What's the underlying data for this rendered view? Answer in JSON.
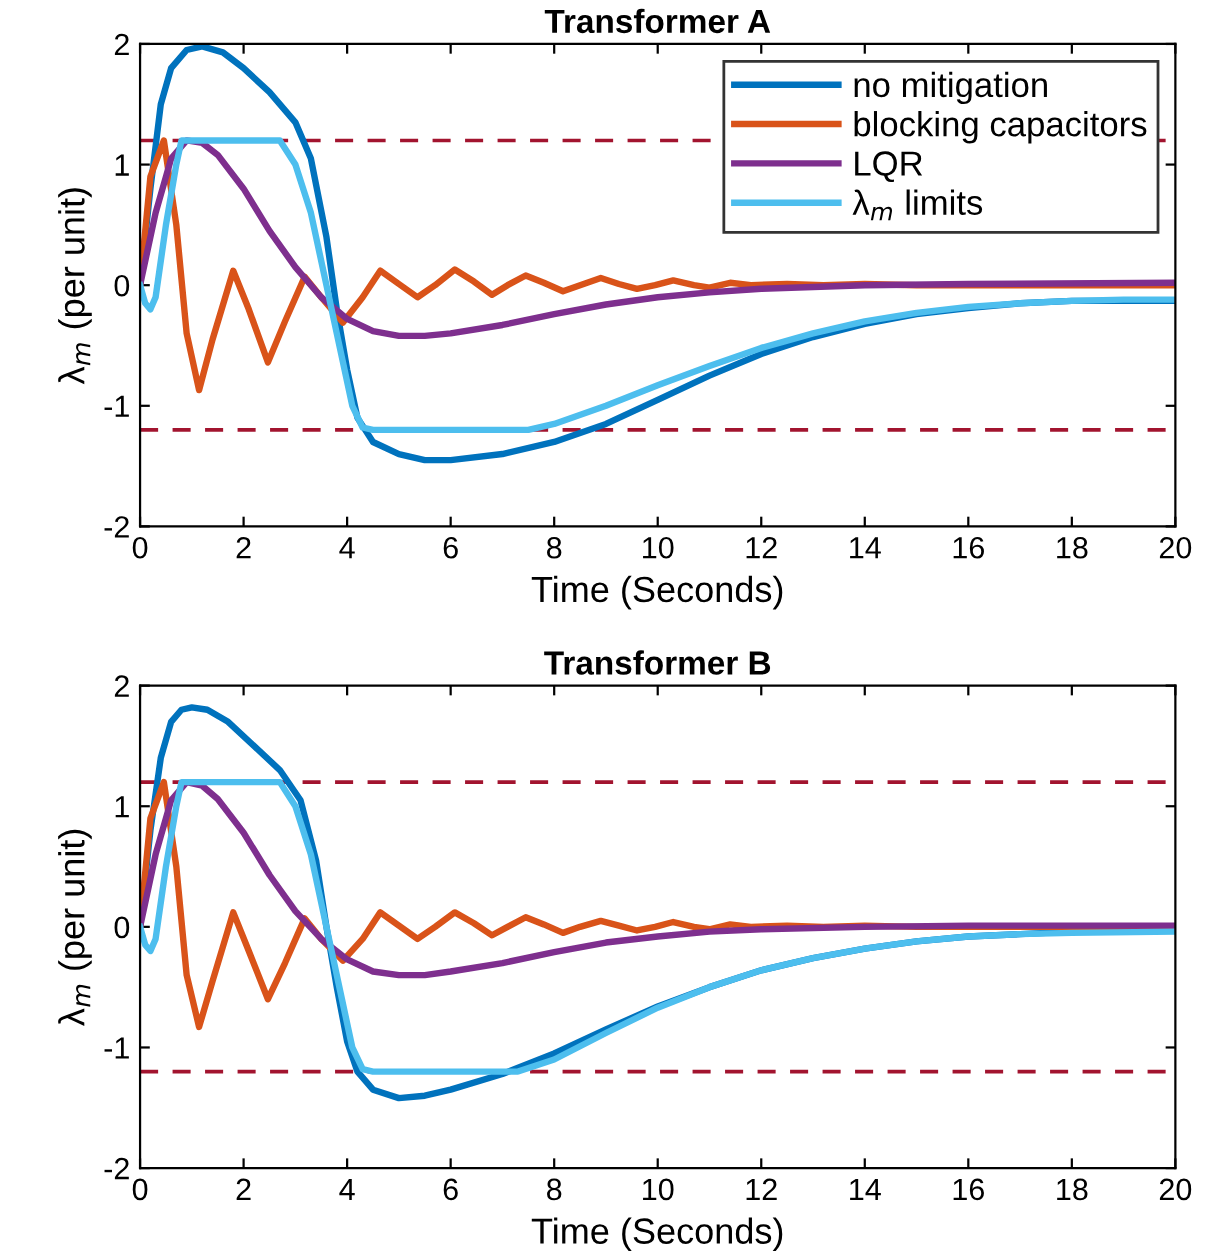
{
  "chart_data": [
    {
      "type": "line",
      "title": "Transformer A",
      "xlabel": "Time (Seconds)",
      "ylabel": "λ$_{m}$ (per unit)",
      "xlim": [
        0,
        20
      ],
      "ylim": [
        -2,
        2
      ],
      "xticks": [
        0,
        2,
        4,
        6,
        8,
        10,
        12,
        14,
        16,
        18,
        20
      ],
      "yticks": [
        -2,
        -1,
        0,
        1,
        2
      ],
      "grid": false,
      "legend": "top right",
      "line_style": "solid",
      "marker": "none",
      "series": [
        {
          "name": "no mitigation",
          "color": "#0072bd",
          "x": [
            0,
            0.2,
            0.4,
            0.6,
            0.9,
            1.2,
            1.6,
            2,
            2.5,
            3,
            3.3,
            3.6,
            3.8,
            4,
            4.2,
            4.5,
            5,
            5.5,
            6,
            7,
            8,
            9,
            10,
            11,
            12,
            13,
            14,
            15,
            16,
            17,
            18,
            19,
            20
          ],
          "values": [
            0,
            0.8,
            1.5,
            1.8,
            1.95,
            1.98,
            1.93,
            1.8,
            1.6,
            1.35,
            1.05,
            0.4,
            -0.2,
            -0.7,
            -1.1,
            -1.3,
            -1.4,
            -1.45,
            -1.45,
            -1.4,
            -1.3,
            -1.15,
            -0.95,
            -0.75,
            -0.57,
            -0.43,
            -0.32,
            -0.24,
            -0.19,
            -0.15,
            -0.13,
            -0.13,
            -0.13
          ]
        },
        {
          "name": "blocking capacitors",
          "color": "#d95319",
          "x": [
            0,
            0.2,
            0.46,
            0.7,
            0.9,
            1.14,
            1.4,
            1.8,
            2.1,
            2.47,
            2.8,
            3.18,
            3.5,
            3.92,
            4.3,
            4.64,
            5.0,
            5.36,
            5.7,
            6.08,
            6.45,
            6.8,
            7.1,
            7.45,
            7.8,
            8.17,
            8.5,
            8.9,
            9.25,
            9.6,
            9.95,
            10.3,
            10.7,
            11.0,
            11.4,
            11.8,
            12.5,
            13.2,
            14,
            15,
            20
          ],
          "values": [
            0,
            0.9,
            1.2,
            0.5,
            -0.4,
            -0.87,
            -0.45,
            0.12,
            -0.2,
            -0.64,
            -0.3,
            0.07,
            -0.1,
            -0.31,
            -0.1,
            0.12,
            0.01,
            -0.1,
            0.0,
            0.13,
            0.03,
            -0.08,
            0.0,
            0.08,
            0.02,
            -0.05,
            0.0,
            0.06,
            0.01,
            -0.03,
            0.0,
            0.04,
            0.0,
            -0.02,
            0.02,
            0.0,
            0.01,
            0.0,
            0.01,
            0.0,
            0.0
          ]
        },
        {
          "name": "LQR",
          "color": "#7e2f8e",
          "x": [
            0,
            0.3,
            0.6,
            0.9,
            1.2,
            1.5,
            2,
            2.5,
            3,
            3.5,
            4,
            4.5,
            5,
            5.5,
            6,
            7,
            8,
            9,
            10,
            11,
            12,
            14,
            16,
            20
          ],
          "values": [
            0,
            0.6,
            1.05,
            1.2,
            1.18,
            1.08,
            0.8,
            0.45,
            0.15,
            -0.1,
            -0.28,
            -0.38,
            -0.42,
            -0.42,
            -0.4,
            -0.33,
            -0.24,
            -0.16,
            -0.1,
            -0.06,
            -0.03,
            0.0,
            0.01,
            0.02
          ]
        },
        {
          "name": "λ$_{m}$ limits",
          "color": "#4dbeee",
          "x": [
            0,
            0.1,
            0.2,
            0.3,
            0.5,
            0.7,
            0.8,
            2.7,
            3.0,
            3.3,
            3.6,
            3.9,
            4.1,
            4.3,
            4.5,
            7.5,
            8,
            9,
            10,
            11,
            12,
            13,
            14,
            15,
            16,
            17,
            18,
            19,
            20
          ],
          "values": [
            0,
            -0.15,
            -0.2,
            -0.1,
            0.5,
            1.0,
            1.2,
            1.2,
            1.0,
            0.6,
            0.0,
            -0.6,
            -1.0,
            -1.18,
            -1.2,
            -1.2,
            -1.15,
            -1.0,
            -0.83,
            -0.67,
            -0.52,
            -0.4,
            -0.3,
            -0.23,
            -0.18,
            -0.15,
            -0.13,
            -0.12,
            -0.12
          ]
        }
      ],
      "ref_lines": [
        {
          "axis": "y",
          "value": 1.2,
          "color": "#a2142f",
          "line_style": "dashed"
        },
        {
          "axis": "y",
          "value": -1.2,
          "color": "#a2142f",
          "line_style": "dashed"
        }
      ]
    },
    {
      "type": "line",
      "title": "Transformer B",
      "xlabel": "Time (Seconds)",
      "ylabel": "λ$_{m}$ (per unit)",
      "xlim": [
        0,
        20
      ],
      "ylim": [
        -2,
        2
      ],
      "xticks": [
        0,
        2,
        4,
        6,
        8,
        10,
        12,
        14,
        16,
        18,
        20
      ],
      "yticks": [
        -2,
        -1,
        0,
        1,
        2
      ],
      "grid": false,
      "line_style": "solid",
      "marker": "none",
      "series": [
        {
          "color": "#0072bd",
          "x": [
            0,
            0.2,
            0.4,
            0.6,
            0.8,
            1.0,
            1.3,
            1.7,
            2.2,
            2.7,
            3.1,
            3.4,
            3.6,
            3.8,
            4.0,
            4.2,
            4.5,
            5,
            5.5,
            6,
            7,
            8,
            9,
            10,
            11,
            12,
            13,
            14,
            15,
            16,
            17,
            18,
            20
          ],
          "values": [
            0,
            0.8,
            1.4,
            1.7,
            1.8,
            1.82,
            1.8,
            1.7,
            1.5,
            1.3,
            1.05,
            0.55,
            0.0,
            -0.5,
            -0.95,
            -1.2,
            -1.35,
            -1.42,
            -1.4,
            -1.35,
            -1.22,
            -1.05,
            -0.85,
            -0.66,
            -0.5,
            -0.36,
            -0.26,
            -0.18,
            -0.12,
            -0.08,
            -0.06,
            -0.04,
            -0.03
          ]
        },
        {
          "color": "#d95319",
          "x": [
            0,
            0.2,
            0.46,
            0.7,
            0.9,
            1.14,
            1.4,
            1.8,
            2.1,
            2.47,
            2.8,
            3.18,
            3.5,
            3.92,
            4.3,
            4.64,
            5.0,
            5.36,
            5.7,
            6.08,
            6.45,
            6.8,
            7.1,
            7.45,
            7.8,
            8.17,
            8.5,
            8.9,
            9.25,
            9.6,
            9.95,
            10.3,
            10.7,
            11.0,
            11.4,
            11.8,
            12.5,
            13.2,
            14,
            15,
            20
          ],
          "values": [
            0,
            0.9,
            1.2,
            0.5,
            -0.4,
            -0.83,
            -0.45,
            0.12,
            -0.2,
            -0.6,
            -0.3,
            0.07,
            -0.1,
            -0.28,
            -0.1,
            0.12,
            0.01,
            -0.1,
            0.0,
            0.12,
            0.03,
            -0.07,
            0.0,
            0.08,
            0.02,
            -0.05,
            0.0,
            0.05,
            0.01,
            -0.03,
            0.0,
            0.04,
            0.0,
            -0.02,
            0.02,
            0.0,
            0.01,
            0.0,
            0.01,
            0.0,
            0.0
          ]
        },
        {
          "color": "#7e2f8e",
          "x": [
            0,
            0.3,
            0.6,
            0.9,
            1.2,
            1.5,
            2,
            2.5,
            3,
            3.5,
            4,
            4.5,
            5,
            5.5,
            6,
            7,
            8,
            9,
            10,
            11,
            12,
            14,
            16,
            20
          ],
          "values": [
            0,
            0.6,
            1.05,
            1.2,
            1.17,
            1.06,
            0.78,
            0.43,
            0.13,
            -0.1,
            -0.27,
            -0.37,
            -0.4,
            -0.4,
            -0.37,
            -0.3,
            -0.21,
            -0.13,
            -0.08,
            -0.04,
            -0.02,
            0.0,
            0.01,
            0.01
          ]
        },
        {
          "color": "#4dbeee",
          "x": [
            0,
            0.1,
            0.2,
            0.3,
            0.5,
            0.7,
            0.8,
            2.7,
            3.0,
            3.3,
            3.6,
            3.9,
            4.1,
            4.3,
            4.5,
            7.3,
            8,
            9,
            10,
            11,
            12,
            13,
            14,
            15,
            16,
            17,
            18,
            20
          ],
          "values": [
            0,
            -0.15,
            -0.2,
            -0.1,
            0.5,
            1.0,
            1.2,
            1.2,
            1.0,
            0.6,
            0.0,
            -0.6,
            -1.0,
            -1.18,
            -1.2,
            -1.2,
            -1.1,
            -0.88,
            -0.67,
            -0.5,
            -0.36,
            -0.26,
            -0.18,
            -0.12,
            -0.08,
            -0.06,
            -0.05,
            -0.04
          ]
        }
      ],
      "ref_lines": [
        {
          "axis": "y",
          "value": 1.2,
          "color": "#a2142f",
          "line_style": "dashed"
        },
        {
          "axis": "y",
          "value": -1.2,
          "color": "#a2142f",
          "line_style": "dashed"
        }
      ]
    }
  ]
}
